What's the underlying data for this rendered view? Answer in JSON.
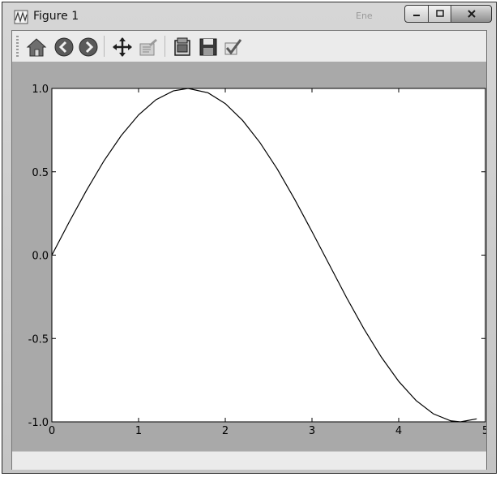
{
  "window": {
    "title": "Figure 1",
    "ghost_title": "Ene"
  },
  "toolbar": {
    "items": [
      {
        "name": "home-button",
        "icon": "home-icon"
      },
      {
        "name": "back-button",
        "icon": "back-arrow-icon"
      },
      {
        "name": "forward-button",
        "icon": "forward-arrow-icon"
      },
      {
        "name": "pan-button",
        "icon": "pan-move-icon"
      },
      {
        "name": "zoom-button",
        "icon": "zoom-rect-icon"
      },
      {
        "name": "subplots-button",
        "icon": "subplots-configure-icon"
      },
      {
        "name": "save-button",
        "icon": "save-floppy-icon"
      },
      {
        "name": "edit-parameters-button",
        "icon": "check-edit-icon"
      }
    ]
  },
  "chart_data": {
    "type": "line",
    "series": [
      {
        "x": [
          0,
          0.2,
          0.4,
          0.6,
          0.8,
          1.0,
          1.2,
          1.4,
          1.571,
          1.8,
          2.0,
          2.2,
          2.4,
          2.6,
          2.8,
          3.0,
          3.142,
          3.4,
          3.6,
          3.8,
          4.0,
          4.2,
          4.4,
          4.6,
          4.712,
          4.9
        ],
        "y": [
          0,
          0.199,
          0.389,
          0.565,
          0.717,
          0.841,
          0.932,
          0.985,
          1.0,
          0.974,
          0.909,
          0.808,
          0.675,
          0.516,
          0.335,
          0.141,
          0,
          -0.256,
          -0.443,
          -0.612,
          -0.757,
          -0.872,
          -0.952,
          -0.994,
          -1.0,
          -0.982
        ],
        "color": "#000000"
      }
    ],
    "xlim": [
      0,
      5
    ],
    "ylim": [
      -1.0,
      1.0
    ],
    "xticks": [
      "0",
      "1",
      "2",
      "3",
      "4",
      "5"
    ],
    "yticks": [
      "1.0",
      "0.5",
      "0.0",
      "-0.5",
      "-1.0"
    ],
    "xlabel": "",
    "ylabel": "",
    "title": "",
    "grid": false
  }
}
